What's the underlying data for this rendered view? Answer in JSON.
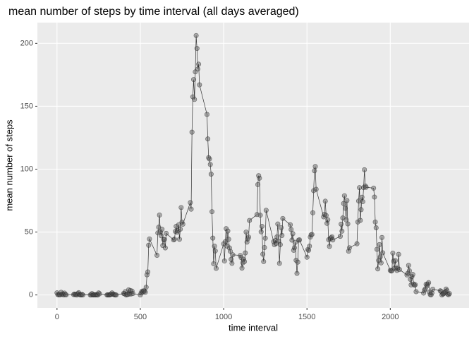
{
  "chart_data": {
    "type": "line",
    "title": "mean number of steps by time interval (all days averaged)",
    "x_label": "time interval",
    "y_label": "mean number of steps",
    "x": [
      0,
      5,
      10,
      15,
      20,
      25,
      30,
      35,
      40,
      45,
      50,
      55,
      100,
      105,
      110,
      115,
      120,
      125,
      130,
      135,
      140,
      145,
      150,
      155,
      200,
      205,
      210,
      215,
      220,
      225,
      230,
      235,
      240,
      245,
      250,
      255,
      300,
      305,
      310,
      315,
      320,
      325,
      330,
      335,
      340,
      345,
      350,
      355,
      400,
      405,
      410,
      415,
      420,
      425,
      430,
      435,
      440,
      445,
      450,
      455,
      500,
      505,
      510,
      515,
      520,
      525,
      530,
      535,
      540,
      545,
      550,
      555,
      600,
      605,
      610,
      615,
      620,
      625,
      630,
      635,
      640,
      645,
      650,
      655,
      700,
      705,
      710,
      715,
      720,
      725,
      730,
      735,
      740,
      745,
      750,
      755,
      800,
      805,
      810,
      815,
      820,
      825,
      830,
      835,
      840,
      845,
      850,
      855,
      900,
      905,
      910,
      915,
      920,
      925,
      930,
      935,
      940,
      945,
      950,
      955,
      1000,
      1005,
      1010,
      1015,
      1020,
      1025,
      1030,
      1035,
      1040,
      1045,
      1050,
      1055,
      1100,
      1105,
      1110,
      1115,
      1120,
      1125,
      1130,
      1135,
      1140,
      1145,
      1150,
      1155,
      1200,
      1205,
      1210,
      1215,
      1220,
      1225,
      1230,
      1235,
      1240,
      1245,
      1250,
      1255,
      1300,
      1305,
      1310,
      1315,
      1320,
      1325,
      1330,
      1335,
      1340,
      1345,
      1350,
      1355,
      1400,
      1405,
      1410,
      1415,
      1420,
      1425,
      1430,
      1435,
      1440,
      1445,
      1450,
      1455,
      1500,
      1505,
      1510,
      1515,
      1520,
      1525,
      1530,
      1535,
      1540,
      1545,
      1550,
      1555,
      1600,
      1605,
      1610,
      1615,
      1620,
      1625,
      1630,
      1635,
      1640,
      1645,
      1650,
      1655,
      1700,
      1705,
      1710,
      1715,
      1720,
      1725,
      1730,
      1735,
      1740,
      1745,
      1750,
      1755,
      1800,
      1805,
      1810,
      1815,
      1820,
      1825,
      1830,
      1835,
      1840,
      1845,
      1850,
      1855,
      1900,
      1905,
      1910,
      1915,
      1920,
      1925,
      1930,
      1935,
      1940,
      1945,
      1950,
      1955,
      2000,
      2005,
      2010,
      2015,
      2020,
      2025,
      2030,
      2035,
      2040,
      2045,
      2050,
      2055,
      2100,
      2105,
      2110,
      2115,
      2120,
      2125,
      2130,
      2135,
      2140,
      2145,
      2150,
      2155,
      2200,
      2205,
      2210,
      2215,
      2220,
      2225,
      2230,
      2235,
      2240,
      2245,
      2250,
      2255,
      2300,
      2305,
      2310,
      2315,
      2320,
      2325,
      2330,
      2335,
      2340,
      2345,
      2350,
      2355
    ],
    "series": [
      {
        "color": "#333333",
        "values": [
          1.7,
          0.3,
          0.1,
          0.2,
          0.1,
          2.1,
          0.5,
          0.9,
          0,
          1.5,
          0.3,
          0.1,
          0.3,
          0.7,
          0.2,
          0.3,
          0,
          1.1,
          1.8,
          0.4,
          0,
          0,
          0.4,
          0,
          0,
          0,
          1.1,
          0,
          0,
          0.1,
          0,
          0.2,
          0,
          0,
          1.6,
          0.9,
          0,
          0,
          0,
          0,
          0.2,
          0.6,
          1.6,
          0.6,
          0.5,
          0.1,
          0,
          0,
          1.2,
          0.9,
          2.6,
          0,
          0.3,
          0.4,
          4.1,
          0.7,
          3.5,
          0.8,
          3.1,
          1.1,
          0,
          1.6,
          3.0,
          2.2,
          3.3,
          3.0,
          2.1,
          6.1,
          16.0,
          18.3,
          39.5,
          44.5,
          31.5,
          49.3,
          53.8,
          63.5,
          50.0,
          47.1,
          52.2,
          39.3,
          44.0,
          44.2,
          37.4,
          49.0,
          43.8,
          44.4,
          50.5,
          54.5,
          49.9,
          51.0,
          55.7,
          44.3,
          52.3,
          69.5,
          57.8,
          56.2,
          73.4,
          68.2,
          129.4,
          157.5,
          171.2,
          155.4,
          177.3,
          206.2,
          195.9,
          179.6,
          183.4,
          167.0,
          143.5,
          124.0,
          109.1,
          108.1,
          103.7,
          96.0,
          66.2,
          45.2,
          24.8,
          38.8,
          35.0,
          21.1,
          40.6,
          27.0,
          42.4,
          52.7,
          38.9,
          50.8,
          44.3,
          37.4,
          34.7,
          28.3,
          25.1,
          31.9,
          31.4,
          29.7,
          21.3,
          25.5,
          28.4,
          26.5,
          33.4,
          50.0,
          42.0,
          44.6,
          46.0,
          59.2,
          63.9,
          87.7,
          94.8,
          92.8,
          63.4,
          50.2,
          54.5,
          32.4,
          26.5,
          37.7,
          45.1,
          67.3,
          42.3,
          39.9,
          43.3,
          41.0,
          46.2,
          56.4,
          42.8,
          25.1,
          40.0,
          53.5,
          47.3,
          60.8,
          55.8,
          52.0,
          43.6,
          48.7,
          35.5,
          37.5,
          41.8,
          27.5,
          17.1,
          26.1,
          43.6,
          43.8,
          30.0,
          36.1,
          35.5,
          38.8,
          46.0,
          47.8,
          48.1,
          65.3,
          82.9,
          98.7,
          102.1,
          84.0,
          62.1,
          64.1,
          74.5,
          63.2,
          56.9,
          59.8,
          43.9,
          38.6,
          44.7,
          45.5,
          46.2,
          43.7,
          46.6,
          56.3,
          50.7,
          61.2,
          72.7,
          78.9,
          68.9,
          59.7,
          75.1,
          56.5,
          34.8,
          37.5,
          40.7,
          58.0,
          74.7,
          85.3,
          59.3,
          67.8,
          77.7,
          74.2,
          85.3,
          99.5,
          86.6,
          85.6,
          84.9,
          77.8,
          58.0,
          53.4,
          36.3,
          20.7,
          27.4,
          40.0,
          30.2,
          25.5,
          45.7,
          33.5,
          19.6,
          19.0,
          19.3,
          33.3,
          26.8,
          21.2,
          27.3,
          21.3,
          19.5,
          21.3,
          32.3,
          20.2,
          15.9,
          17.2,
          23.5,
          19.2,
          12.5,
          8.0,
          14.7,
          16.3,
          8.7,
          7.8,
          8.1,
          2.6,
          1.5,
          3.7,
          4.8,
          8.5,
          7.1,
          8.7,
          9.8,
          2.2,
          0.3,
          0.1,
          1.6,
          4.6,
          3.3,
          2.8,
          0,
          0.8,
          1.0,
          1.6,
          2.6,
          4.7,
          3.3,
          0.6,
          0.2,
          1.1
        ]
      }
    ],
    "point_color": "#555555",
    "xlim": [
      -117.75,
      2472.75
    ],
    "ylim": [
      -10.31,
      216.48
    ],
    "xticks": [
      0,
      500,
      1000,
      1500,
      2000
    ],
    "yticks": [
      0,
      50,
      100,
      150,
      200
    ],
    "grid": true
  }
}
